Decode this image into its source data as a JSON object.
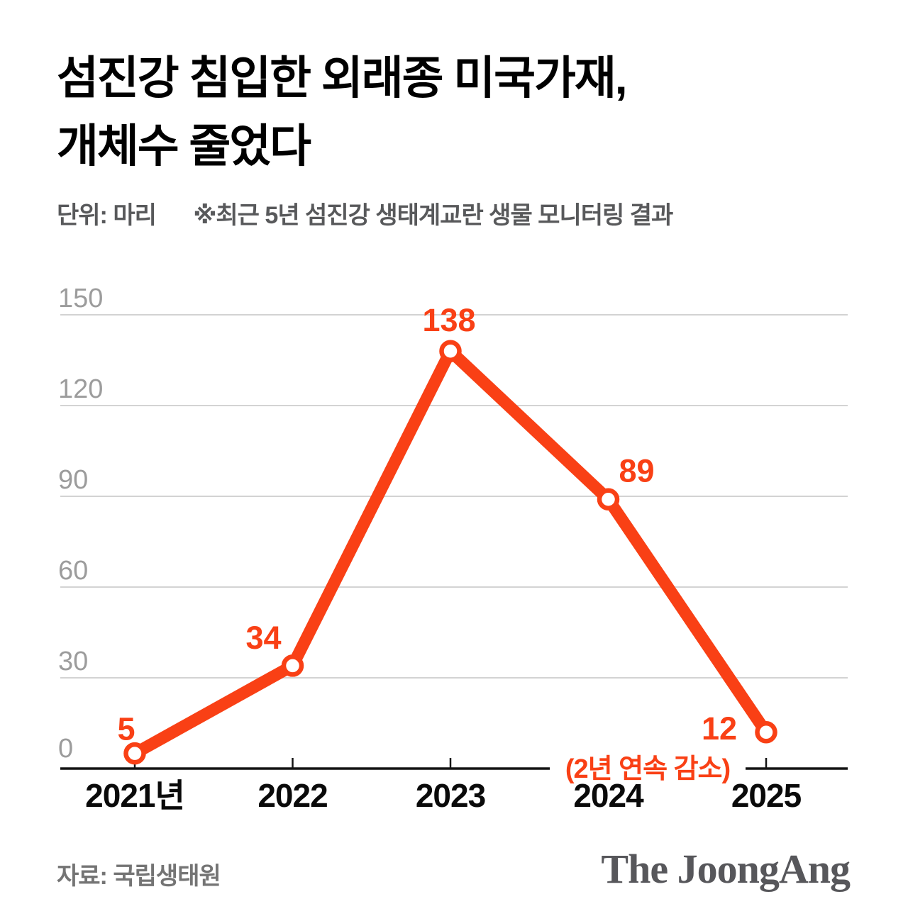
{
  "header": {
    "title_line1": "섬진강 침입한 외래종 미국가재,",
    "title_line2": "개체수 줄었다",
    "unit_label": "단위: 마리",
    "note": "※최근 5년 섬진강 생태계교란 생물 모니터링 결과"
  },
  "chart_data": {
    "type": "line",
    "title": "섬진강 침입한 외래종 미국가재, 개체수 줄었다",
    "unit": "마리",
    "categories": [
      "2021년",
      "2022",
      "2023",
      "2024",
      "2025"
    ],
    "values": [
      5,
      34,
      138,
      89,
      12
    ],
    "ylim": [
      0,
      150
    ],
    "yticks": [
      0,
      30,
      60,
      90,
      120,
      150
    ],
    "grid": true,
    "legend": "none",
    "marker": "open-circle",
    "annotation": {
      "text": "(2년 연속 감소)",
      "target_category": "2025"
    }
  },
  "footer": {
    "source": "자료: 국립생태원",
    "logo": "The JoongAng"
  },
  "colors": {
    "accent": "#F94015",
    "grid": "#D3D3D3",
    "axis": "#141414",
    "y_label": "#9C9C9C",
    "x_label": "#0A0A0A",
    "title": "#000000",
    "subtitle": "#58595B",
    "source": "#747474",
    "logo": "#57575B"
  }
}
